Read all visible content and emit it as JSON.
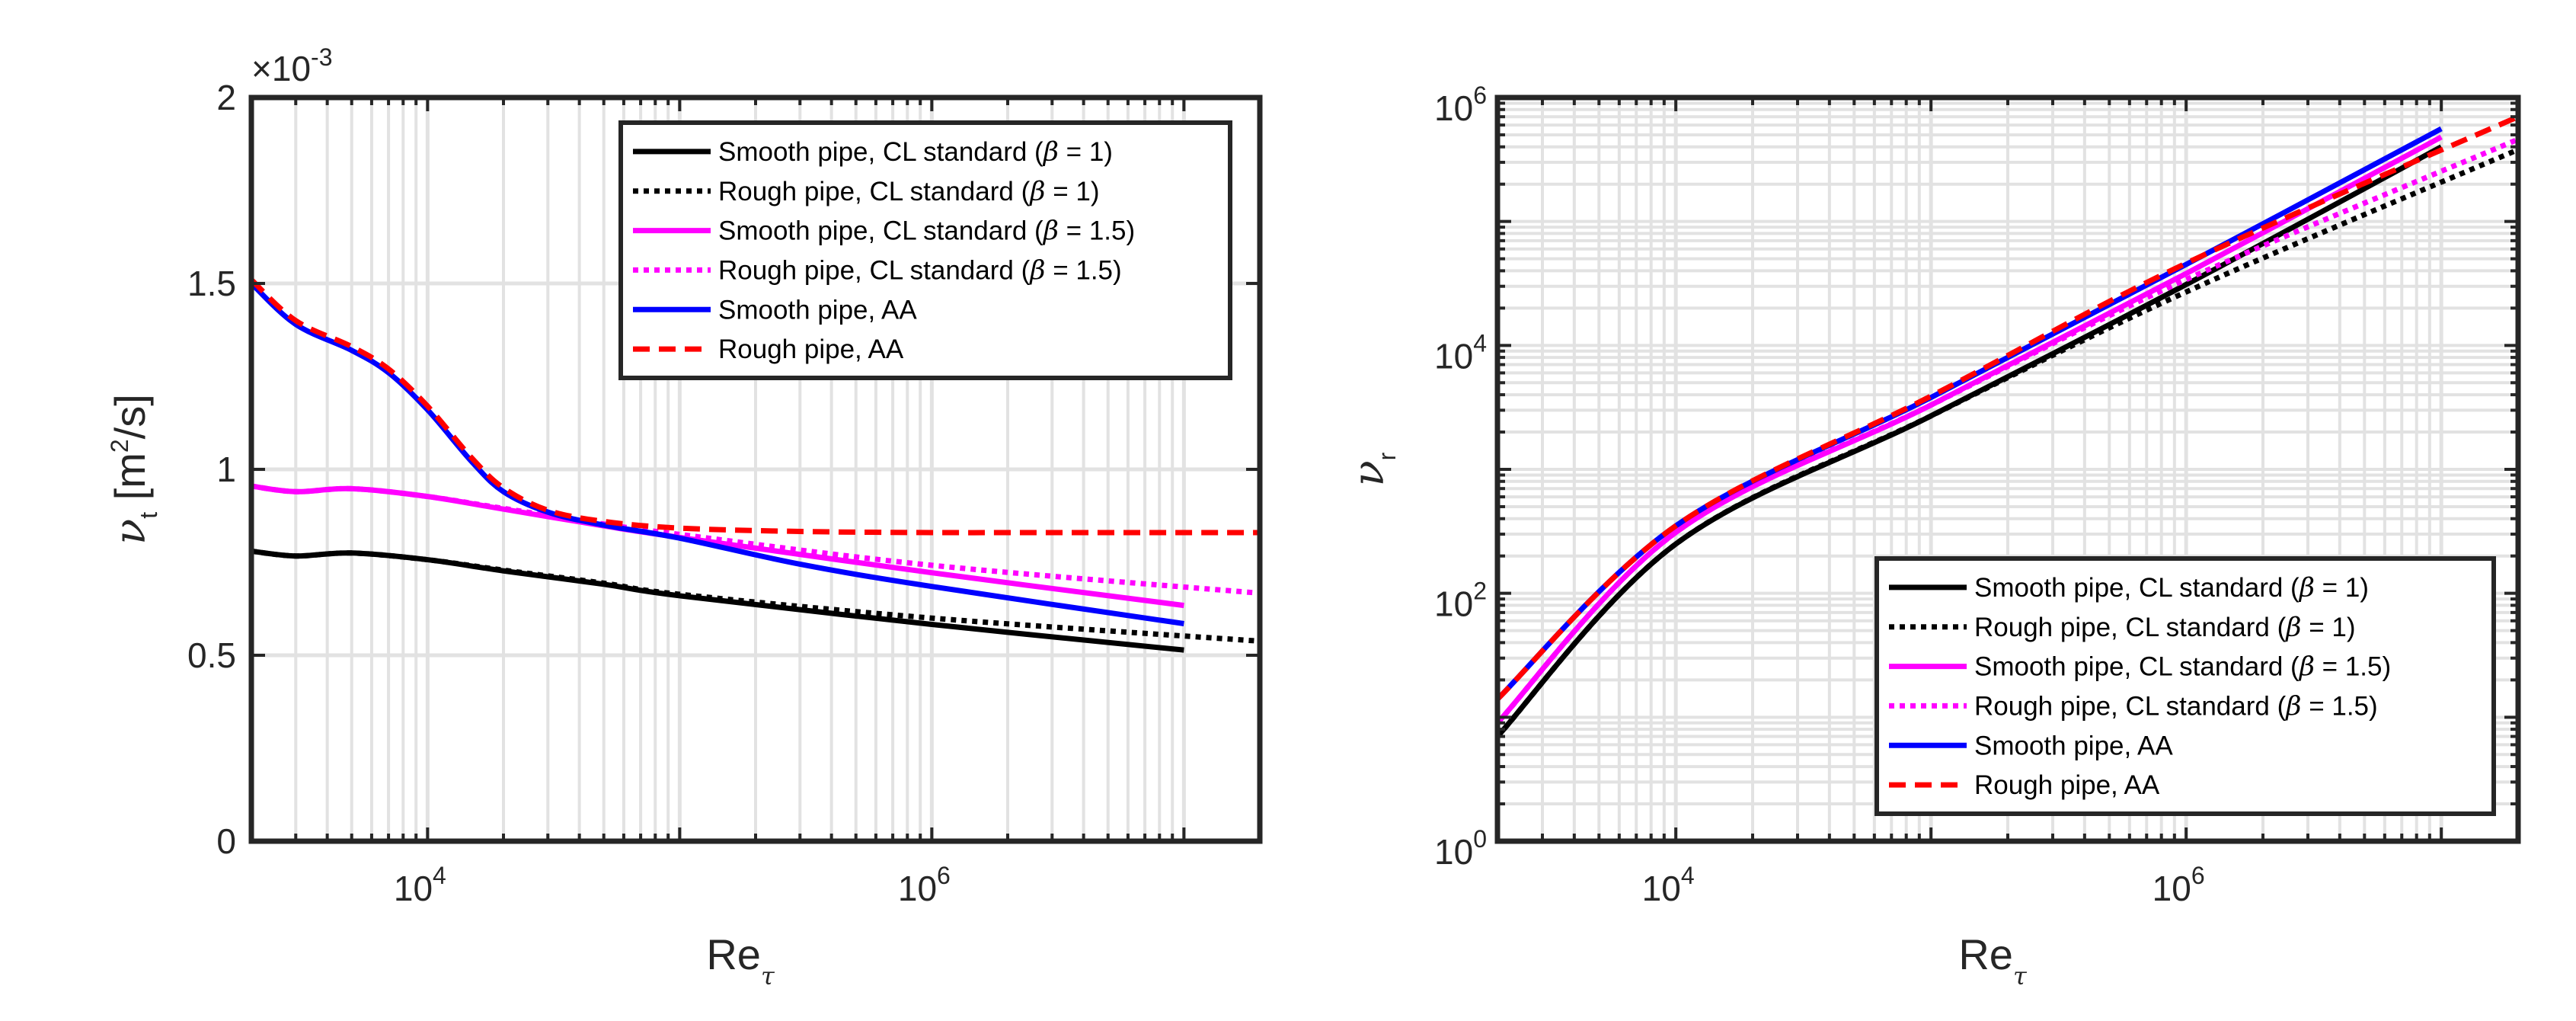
{
  "chart_data": [
    {
      "type": "line",
      "xscale": "log",
      "yscale": "linear",
      "xlim": [
        2000,
        20000000
      ],
      "ylim": [
        0,
        0.002
      ],
      "xticks": [
        10000,
        1000000
      ],
      "xtick_labels": [
        {
          "base": "10",
          "exp": "4"
        },
        {
          "base": "10",
          "exp": "6"
        }
      ],
      "yticks": [
        0,
        0.0005,
        0.001,
        0.0015,
        0.002
      ],
      "ytick_labels": [
        "0",
        "0.5",
        "1",
        "1.5",
        "2"
      ],
      "exponent_label": {
        "prefix": "×10",
        "exp": "-3"
      },
      "ylabel": {
        "symbol": "ν",
        "sub": "t",
        "unit_pre": " [m",
        "unit_exp": "2",
        "unit_post": "/s]"
      },
      "xlabel": {
        "main": "Re",
        "sub": "τ"
      },
      "grid": true,
      "minor_grid": true,
      "legend_position": "top-right",
      "series": [
        {
          "name": "Smooth pipe, CL standard (β = 1)",
          "color": "#000000",
          "style": "solid",
          "x": [
            2000,
            3000,
            5000,
            10000,
            20000,
            50000,
            100000,
            1000000,
            10000000
          ],
          "y": [
            0.00078,
            0.000767,
            0.000775,
            0.000757,
            0.000727,
            0.000691,
            0.00066,
            0.000583,
            0.000514
          ]
        },
        {
          "name": "Rough pipe, CL standard (β = 1)",
          "color": "#000000",
          "style": "dotted",
          "x": [
            2000,
            3000,
            5000,
            10000,
            20000,
            50000,
            100000,
            1000000,
            20000000
          ],
          "y": [
            0.00078,
            0.000767,
            0.000775,
            0.000757,
            0.000729,
            0.000694,
            0.000664,
            0.0006,
            0.000538
          ]
        },
        {
          "name": "Smooth pipe, CL standard (β = 1.5)",
          "color": "#ff00ff",
          "style": "solid",
          "x": [
            2000,
            3000,
            5000,
            10000,
            20000,
            50000,
            100000,
            1000000,
            10000000
          ],
          "y": [
            0.000955,
            0.00094,
            0.000948,
            0.000927,
            0.000893,
            0.000848,
            0.000817,
            0.000722,
            0.000634
          ]
        },
        {
          "name": "Rough pipe, CL standard (β = 1.5)",
          "color": "#ff00ff",
          "style": "dotted",
          "x": [
            2000,
            3000,
            5000,
            10000,
            20000,
            50000,
            100000,
            1000000,
            20000000
          ],
          "y": [
            0.000955,
            0.00094,
            0.000948,
            0.000927,
            0.000895,
            0.000853,
            0.000825,
            0.000742,
            0.000667
          ]
        },
        {
          "name": "Smooth pipe, AA",
          "color": "#0000ff",
          "style": "solid",
          "x": [
            2000,
            3000,
            5000,
            7000,
            10000,
            15000,
            20000,
            30000,
            50000,
            100000,
            300000,
            1000000,
            10000000
          ],
          "y": [
            0.0015,
            0.00139,
            0.00132,
            0.00126,
            0.00116,
            0.00102,
            0.00094,
            0.000885,
            0.00085,
            0.000815,
            0.000745,
            0.000685,
            0.000585
          ]
        },
        {
          "name": "Rough pipe, AA",
          "color": "#ff0000",
          "style": "dashed",
          "x": [
            2000,
            3000,
            5000,
            7000,
            10000,
            15000,
            20000,
            30000,
            50000,
            100000,
            300000,
            1000000,
            3000000,
            20000000
          ],
          "y": [
            0.00151,
            0.0014,
            0.00133,
            0.00127,
            0.00117,
            0.00103,
            0.00095,
            0.00089,
            0.00086,
            0.000842,
            0.000833,
            0.00083,
            0.00083,
            0.00083
          ]
        }
      ]
    },
    {
      "type": "line",
      "xscale": "log",
      "yscale": "log",
      "xlim": [
        2000,
        20000000
      ],
      "ylim": [
        1,
        1000000
      ],
      "xticks": [
        10000,
        1000000
      ],
      "xtick_labels": [
        {
          "base": "10",
          "exp": "4"
        },
        {
          "base": "10",
          "exp": "6"
        }
      ],
      "yticks": [
        1,
        100,
        10000,
        1000000
      ],
      "ytick_labels": [
        {
          "base": "10",
          "exp": "0"
        },
        {
          "base": "10",
          "exp": "2"
        },
        {
          "base": "10",
          "exp": "4"
        },
        {
          "base": "10",
          "exp": "6"
        }
      ],
      "ylabel": {
        "symbol": "ν",
        "sub": "r"
      },
      "xlabel": {
        "main": "Re",
        "sub": "τ"
      },
      "grid": true,
      "minor_grid": true,
      "legend_position": "bottom-right",
      "series": [
        {
          "name": "Smooth pipe, CL standard (β = 1)",
          "color": "#000000",
          "style": "solid",
          "x": [
            2000,
            10000,
            100000,
            1000000,
            10000000
          ],
          "y": [
            7,
            250,
            2700,
            31000,
            400000
          ]
        },
        {
          "name": "Rough pipe, CL standard (β = 1)",
          "color": "#000000",
          "style": "dotted",
          "x": [
            2000,
            10000,
            100000,
            1000000,
            20000000
          ],
          "y": [
            7,
            250,
            2700,
            27000,
            380000
          ]
        },
        {
          "name": "Smooth pipe, CL standard (β = 1.5)",
          "color": "#ff00ff",
          "style": "solid",
          "x": [
            2000,
            10000,
            100000,
            1000000,
            10000000
          ],
          "y": [
            9,
            310,
            3300,
            38000,
            480000
          ]
        },
        {
          "name": "Rough pipe, CL standard (β = 1.5)",
          "color": "#ff00ff",
          "style": "dotted",
          "x": [
            2000,
            10000,
            100000,
            1000000,
            20000000
          ],
          "y": [
            9,
            310,
            3300,
            34000,
            460000
          ]
        },
        {
          "name": "Smooth pipe, AA",
          "color": "#0000ff",
          "style": "solid",
          "x": [
            2000,
            10000,
            100000,
            1000000,
            10000000
          ],
          "y": [
            14,
            350,
            3800,
            45000,
            560000
          ]
        },
        {
          "name": "Rough pipe, AA",
          "color": "#ff0000",
          "style": "dashed",
          "x": [
            2000,
            10000,
            100000,
            1000000,
            20000000
          ],
          "y": [
            14,
            350,
            3900,
            46000,
            700000
          ]
        }
      ]
    }
  ]
}
